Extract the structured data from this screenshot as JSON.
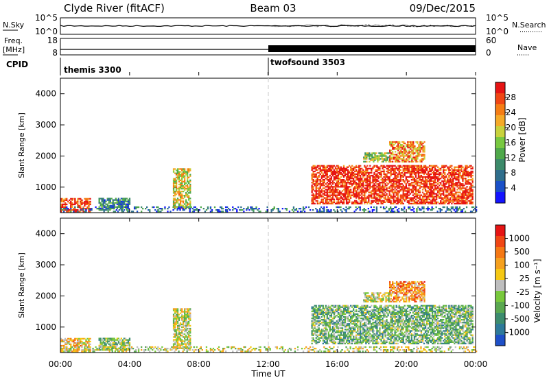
{
  "header": {
    "station": "Clyde River (fitACF)",
    "beam": "Beam 03",
    "date": "09/Dec/2015"
  },
  "nsky_panel": {
    "left_label": "N.Sky",
    "right_label": "N.Search",
    "left_ticks": [
      "10^5",
      "10^0"
    ],
    "right_ticks": [
      "10^5",
      "10^0"
    ]
  },
  "freq_panel": {
    "left_label_1": "Freq.",
    "left_label_2": "[MHz]",
    "right_label": "Nave",
    "left_ticks": [
      "18",
      "8"
    ],
    "right_ticks": [
      "60",
      "0"
    ]
  },
  "cpid": {
    "label": "CPID",
    "modes": [
      {
        "name": "themis 3300",
        "start_hour": 0
      },
      {
        "name": "twofsound 3503",
        "start_hour": 12
      }
    ]
  },
  "x_axis": {
    "ticks": [
      "00:00",
      "04:00",
      "08:00",
      "12:00",
      "16:00",
      "20:00",
      "00:00"
    ],
    "label": "Time UT"
  },
  "chart_data": [
    {
      "type": "heatmap",
      "quantity": "power",
      "ylabel": "Slant Range [km]",
      "yticks": [
        "1000",
        "2000",
        "3000",
        "4000"
      ],
      "xlim": [
        0,
        24
      ],
      "ylim": [
        180,
        4500
      ],
      "colorbar": {
        "label": "Power [dB]",
        "ticks": [
          "4",
          "8",
          "12",
          "16",
          "20",
          "24",
          "28"
        ],
        "colors": [
          "#1414ff",
          "#1a50c8",
          "#2f6e8c",
          "#3c8a6a",
          "#4fa84a",
          "#78c840",
          "#c8d23c",
          "#f5aa28",
          "#f57d14",
          "#f04614",
          "#e61414"
        ]
      },
      "regions": [
        {
          "t0": 0.0,
          "t1": 1.7,
          "r0": 200,
          "r1": 650,
          "level": 0.88
        },
        {
          "t0": 2.2,
          "t1": 4.0,
          "r0": 250,
          "r1": 620,
          "level": 0.3
        },
        {
          "t0": 6.5,
          "t1": 7.5,
          "r0": 300,
          "r1": 1600,
          "level": 0.6
        },
        {
          "t0": 0.0,
          "t1": 24.0,
          "r0": 200,
          "r1": 360,
          "level": 0.22
        },
        {
          "t0": 14.5,
          "t1": 23.8,
          "r0": 450,
          "r1": 1700,
          "level": 0.92
        },
        {
          "t0": 19.0,
          "t1": 21.0,
          "r0": 1800,
          "r1": 2450,
          "level": 0.75
        },
        {
          "t0": 17.5,
          "t1": 19.0,
          "r0": 1800,
          "r1": 2100,
          "level": 0.5
        }
      ]
    },
    {
      "type": "heatmap",
      "quantity": "velocity",
      "ylabel": "Slant Range [km]",
      "yticks": [
        "1000",
        "2000",
        "3000",
        "4000"
      ],
      "xlim": [
        0,
        24
      ],
      "ylim": [
        180,
        4500
      ],
      "colorbar": {
        "label": "Velocity [m s⁻¹]",
        "ticks": [
          "1000",
          "500",
          "100",
          "25",
          "-25",
          "-100",
          "-500",
          "-1000"
        ],
        "colors": [
          "#1e50c8",
          "#2e7a9a",
          "#3c8c6e",
          "#5aa850",
          "#78c83c",
          "#bebebe",
          "#f5c814",
          "#f5a01e",
          "#f57814",
          "#f04614",
          "#e61414"
        ]
      },
      "regions": [
        {
          "t0": 0.0,
          "t1": 1.7,
          "r0": 200,
          "r1": 650,
          "level": 0.6
        },
        {
          "t0": 2.2,
          "t1": 4.0,
          "r0": 250,
          "r1": 620,
          "level": 0.4
        },
        {
          "t0": 6.5,
          "t1": 7.5,
          "r0": 300,
          "r1": 1600,
          "level": 0.5
        },
        {
          "t0": 0.0,
          "t1": 24.0,
          "r0": 200,
          "r1": 360,
          "level": 0.5
        },
        {
          "t0": 14.5,
          "t1": 23.8,
          "r0": 450,
          "r1": 1700,
          "level": 0.35
        },
        {
          "t0": 19.0,
          "t1": 21.0,
          "r0": 1800,
          "r1": 2450,
          "level": 0.7
        },
        {
          "t0": 17.5,
          "t1": 19.0,
          "r0": 1800,
          "r1": 2100,
          "level": 0.5
        }
      ]
    }
  ]
}
